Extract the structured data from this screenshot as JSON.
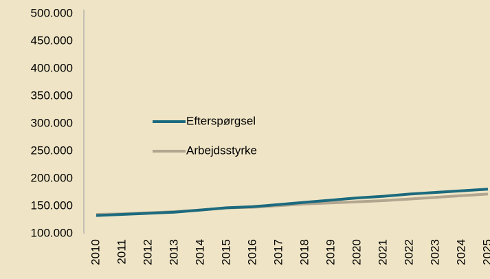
{
  "chart_data": {
    "type": "line",
    "categories": [
      "2010",
      "2011",
      "2012",
      "2013",
      "2014",
      "2015",
      "2016",
      "2017",
      "2018",
      "2019",
      "2020",
      "2021",
      "2022",
      "2023",
      "2024",
      "2025"
    ],
    "series": [
      {
        "name": "Efterspørgsel",
        "color": "#1c6a7e",
        "values": [
          133000,
          135000,
          137000,
          139000,
          143000,
          147000,
          149000,
          153000,
          157000,
          161000,
          165000,
          168000,
          172000,
          175000,
          178000,
          181000
        ]
      },
      {
        "name": "Arbejdsstyrke",
        "color": "#b3a690",
        "values": [
          135000,
          136000,
          138000,
          140000,
          143000,
          147000,
          148000,
          151000,
          154000,
          156000,
          158000,
          160000,
          163000,
          166000,
          169000,
          172000
        ]
      }
    ],
    "ylim": [
      100000,
      500000
    ],
    "yticks": [
      {
        "value": 100000,
        "label": "100.000"
      },
      {
        "value": 150000,
        "label": "150.000"
      },
      {
        "value": 200000,
        "label": "200.000"
      },
      {
        "value": 250000,
        "label": "250.000"
      },
      {
        "value": 300000,
        "label": "300.000"
      },
      {
        "value": 350000,
        "label": "350.000"
      },
      {
        "value": 400000,
        "label": "400.000"
      },
      {
        "value": 450000,
        "label": "450.000"
      },
      {
        "value": 500000,
        "label": "500.000"
      }
    ],
    "grid": false,
    "legend": "center-left"
  }
}
